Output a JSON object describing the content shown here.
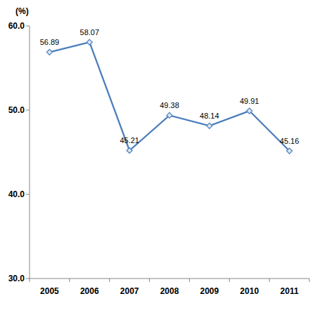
{
  "chart_data": {
    "type": "line",
    "y_axis_label": "(%)",
    "categories": [
      "2005",
      "2006",
      "2007",
      "2008",
      "2009",
      "2010",
      "2011"
    ],
    "values": [
      56.89,
      58.07,
      45.21,
      49.38,
      48.14,
      49.91,
      45.16
    ],
    "color": "#4a7ebb",
    "marker": "diamond",
    "data_labels": true,
    "grid": false,
    "ylim": [
      30,
      60
    ],
    "yticks": [
      {
        "value": 30,
        "label": "30.0"
      },
      {
        "value": 40,
        "label": "40.0"
      },
      {
        "value": 50,
        "label": "50.0"
      },
      {
        "value": 60,
        "label": "60.0"
      }
    ]
  }
}
